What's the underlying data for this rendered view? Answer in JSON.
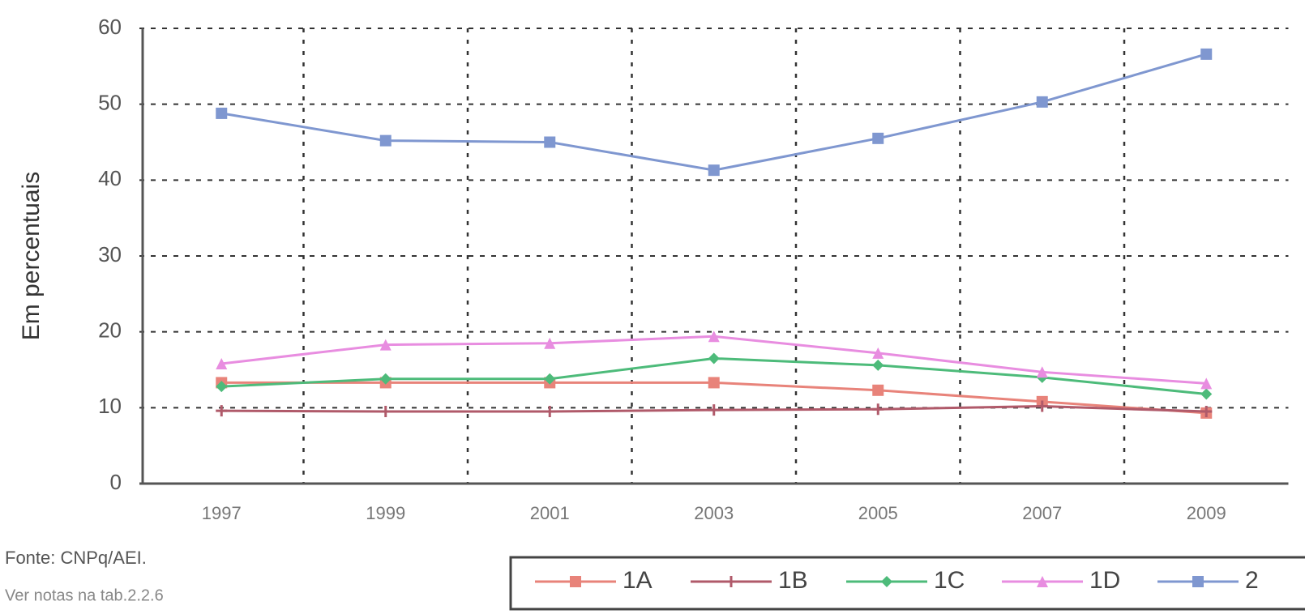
{
  "chart_data": {
    "type": "line",
    "y_label": "Em percentuais",
    "categories": [
      "1997",
      "1999",
      "2001",
      "2003",
      "2005",
      "2007",
      "2009"
    ],
    "series": [
      {
        "name": "1A",
        "color": "#e8837a",
        "marker": "square",
        "values": [
          13.3,
          13.3,
          13.3,
          13.3,
          12.3,
          10.8,
          9.3
        ]
      },
      {
        "name": "1B",
        "color": "#b05a6a",
        "marker": "plus",
        "values": [
          9.6,
          9.5,
          9.5,
          9.7,
          9.8,
          10.2,
          9.5
        ]
      },
      {
        "name": "1C",
        "color": "#4dbb7a",
        "marker": "diamond",
        "values": [
          12.8,
          13.8,
          13.8,
          16.5,
          15.6,
          14.0,
          11.8
        ]
      },
      {
        "name": "1D",
        "color": "#e88de0",
        "marker": "triangle",
        "values": [
          15.8,
          18.3,
          18.5,
          19.4,
          17.2,
          14.7,
          13.2
        ]
      },
      {
        "name": "2",
        "color": "#7f97d0",
        "marker": "square",
        "values": [
          48.8,
          45.2,
          45.0,
          41.3,
          45.5,
          50.3,
          56.6
        ]
      }
    ],
    "ylim": [
      0,
      60
    ],
    "yticks": [
      0,
      10,
      20,
      30,
      40,
      50,
      60
    ],
    "grid": true,
    "legend": "bottom",
    "notes": [
      "Fonte: CNPq/AEI.",
      "Ver notas na tab.2.2.6"
    ]
  }
}
